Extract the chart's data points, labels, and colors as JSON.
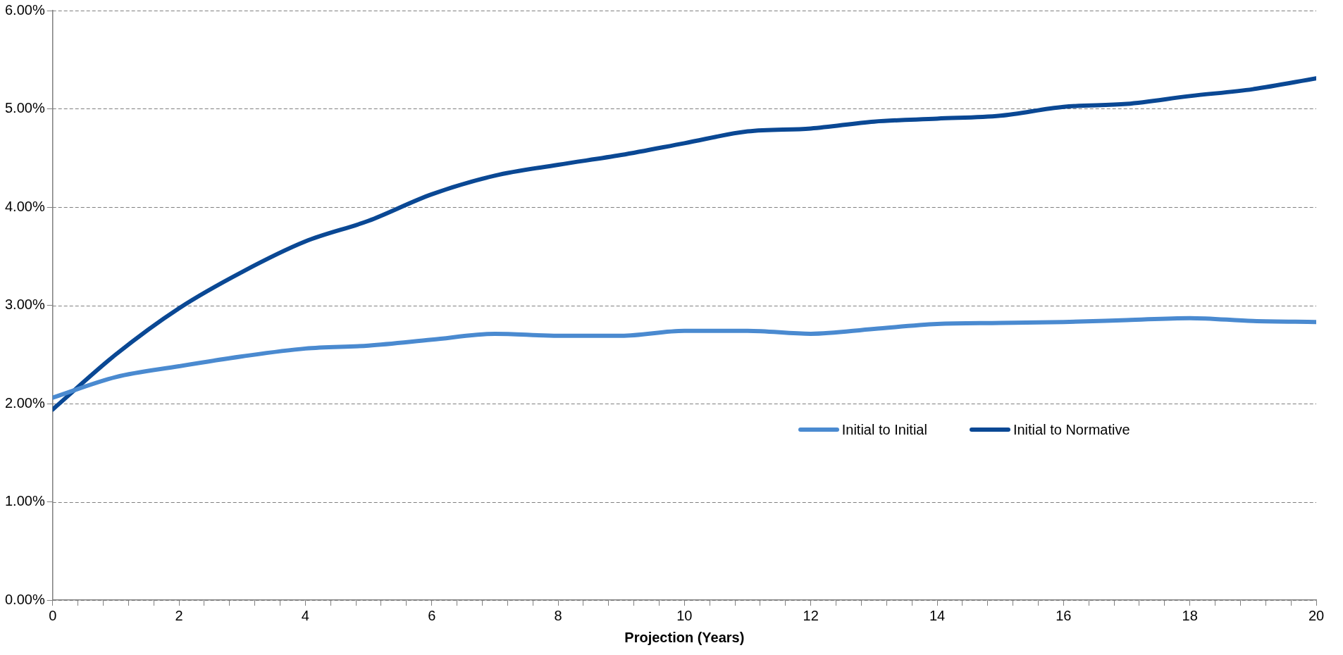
{
  "chart_data": {
    "type": "line",
    "xlabel": "Projection (Years)",
    "x": [
      0,
      1,
      2,
      3,
      4,
      5,
      6,
      7,
      8,
      9,
      10,
      11,
      12,
      13,
      14,
      15,
      16,
      17,
      18,
      19,
      20
    ],
    "series": [
      {
        "name": "Initial to Initial",
        "color": "#4a8ad0",
        "values": [
          2.06,
          2.27,
          2.38,
          2.48,
          2.56,
          2.59,
          2.65,
          2.71,
          2.69,
          2.69,
          2.74,
          2.74,
          2.71,
          2.76,
          2.81,
          2.82,
          2.83,
          2.85,
          2.87,
          2.84,
          2.83
        ]
      },
      {
        "name": "Initial to Normative",
        "color": "#0a4894",
        "values": [
          1.94,
          2.5,
          2.97,
          3.34,
          3.65,
          3.86,
          4.13,
          4.32,
          4.43,
          4.53,
          4.65,
          4.77,
          4.8,
          4.87,
          4.9,
          4.93,
          5.02,
          5.05,
          5.13,
          5.2,
          5.31
        ]
      }
    ],
    "xlim": [
      0,
      20
    ],
    "xticks": [
      0,
      {
        "value": 0.4,
        "label": null
      },
      {
        "value": 0.8,
        "label": null
      },
      {
        "value": 1.2,
        "label": null
      },
      {
        "value": 1.6,
        "label": null
      },
      2,
      {
        "value": 2.4,
        "label": null
      },
      {
        "value": 2.8,
        "label": null
      },
      {
        "value": 3.2,
        "label": null
      },
      {
        "value": 3.6,
        "label": null
      },
      4,
      {
        "value": 4.4,
        "label": null
      },
      {
        "value": 4.8,
        "label": null
      },
      {
        "value": 5.2,
        "label": null
      },
      {
        "value": 5.6,
        "label": null
      },
      6,
      {
        "value": 6.4,
        "label": null
      },
      {
        "value": 6.8,
        "label": null
      },
      {
        "value": 7.2,
        "label": null
      },
      {
        "value": 7.6,
        "label": null
      },
      8,
      {
        "value": 8.4,
        "label": null
      },
      {
        "value": 8.8,
        "label": null
      },
      {
        "value": 9.2,
        "label": null
      },
      {
        "value": 9.6,
        "label": null
      },
      10,
      {
        "value": 10.4,
        "label": null
      },
      {
        "value": 10.8,
        "label": null
      },
      {
        "value": 11.2,
        "label": null
      },
      {
        "value": 11.6,
        "label": null
      },
      12,
      {
        "value": 12.4,
        "label": null
      },
      {
        "value": 12.8,
        "label": null
      },
      {
        "value": 13.2,
        "label": null
      },
      {
        "value": 13.6,
        "label": null
      },
      14,
      {
        "value": 14.4,
        "label": null
      },
      {
        "value": 14.8,
        "label": null
      },
      {
        "value": 15.2,
        "label": null
      },
      {
        "value": 15.6,
        "label": null
      },
      16,
      {
        "value": 16.4,
        "label": null
      },
      {
        "value": 16.8,
        "label": null
      },
      {
        "value": 17.2,
        "label": null
      },
      {
        "value": 17.6,
        "label": null
      },
      18,
      {
        "value": 18.4,
        "label": null
      },
      {
        "value": 18.8,
        "label": null
      },
      {
        "value": 19.2,
        "label": null
      },
      {
        "value": 19.6,
        "label": null
      },
      20
    ],
    "ylim": [
      0,
      6
    ],
    "yticks": [
      {
        "value": 0,
        "label": "0.00%"
      },
      {
        "value": 1,
        "label": "1.00%"
      },
      {
        "value": 2,
        "label": "2.00%"
      },
      {
        "value": 3,
        "label": "3.00%"
      },
      {
        "value": 4,
        "label": "4.00%"
      },
      {
        "value": 5,
        "label": "5.00%"
      },
      {
        "value": 6,
        "label": "6.00%"
      }
    ],
    "grid": "y",
    "legend": "right",
    "marker": "none",
    "line_style": "solid"
  }
}
